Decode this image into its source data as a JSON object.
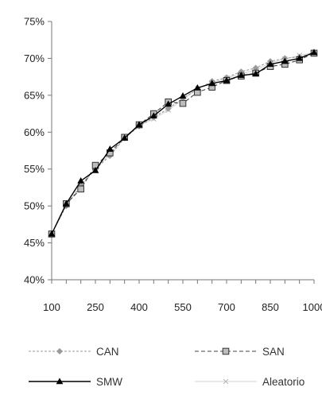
{
  "chart_data": {
    "type": "line",
    "title": "",
    "xlabel": "",
    "ylabel": "",
    "x": [
      100,
      150,
      200,
      250,
      300,
      350,
      400,
      450,
      500,
      550,
      600,
      650,
      700,
      750,
      800,
      850,
      900,
      950,
      1000
    ],
    "x_tick_labels": [
      "100",
      "250",
      "400",
      "550",
      "700",
      "850",
      "1000"
    ],
    "y_tick_labels": [
      "40%",
      "45%",
      "50%",
      "55%",
      "60%",
      "65%",
      "70%",
      "75%"
    ],
    "ylim": [
      40,
      75
    ],
    "xlim": [
      100,
      1000
    ],
    "legend_position": "bottom",
    "series": [
      {
        "name": "CAN",
        "color": "#9a9a9a",
        "dash": "3,2",
        "marker": "diamond",
        "values": [
          46.2,
          50.0,
          52.8,
          55.0,
          56.8,
          59.2,
          60.8,
          62.0,
          63.2,
          64.6,
          65.8,
          66.9,
          67.4,
          68.2,
          68.7,
          69.6,
          70.0,
          70.2,
          70.7
        ]
      },
      {
        "name": "SAN",
        "color": "#444444",
        "dash": "5,3",
        "marker": "square",
        "values": [
          46.2,
          50.3,
          52.3,
          55.5,
          57.2,
          59.3,
          61.0,
          62.5,
          64.1,
          63.9,
          65.4,
          66.1,
          67.0,
          67.6,
          68.0,
          68.9,
          69.2,
          69.8,
          70.7
        ]
      },
      {
        "name": "SMW",
        "color": "#000000",
        "dash": "",
        "marker": "triangle",
        "values": [
          46.2,
          50.3,
          53.4,
          54.8,
          57.7,
          59.2,
          61.0,
          62.2,
          63.8,
          64.9,
          66.0,
          66.6,
          67.0,
          67.7,
          67.9,
          69.2,
          69.6,
          70.0,
          70.8
        ]
      },
      {
        "name": "Aleatorio",
        "color": "#d6d6d6",
        "dash": "",
        "marker": "x",
        "values": [
          46.2,
          50.2,
          52.6,
          55.2,
          57.0,
          59.2,
          60.9,
          61.8,
          63.0,
          64.4,
          65.9,
          66.7,
          67.3,
          67.9,
          68.4,
          69.4,
          69.9,
          70.4,
          70.8
        ]
      }
    ]
  }
}
